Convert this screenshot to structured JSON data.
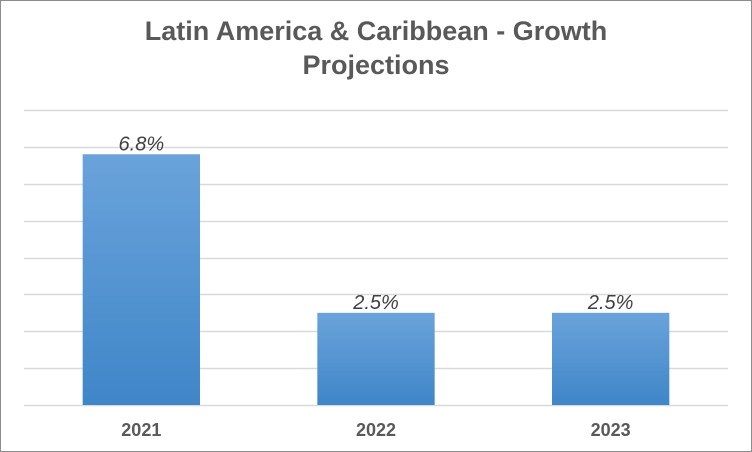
{
  "chart_data": {
    "type": "bar",
    "title": "Latin America & Caribbean - Growth Projections",
    "title_lines": [
      "Latin America & Caribbean - Growth",
      "Projections"
    ],
    "categories": [
      "2021",
      "2022",
      "2023"
    ],
    "values": [
      6.8,
      2.5,
      2.5
    ],
    "data_labels": [
      "6.8%",
      "2.5%",
      "2.5%"
    ],
    "xlabel": "",
    "ylabel": "",
    "ylim": [
      0,
      8
    ],
    "y_gridline_step": 1,
    "grid": true,
    "y_axis_labels_visible": false,
    "legend": "none",
    "colors": {
      "bar_top": "#6aa3db",
      "bar_bottom": "#3f86c8",
      "grid": "#d9d9d9",
      "text": "#595959"
    }
  }
}
